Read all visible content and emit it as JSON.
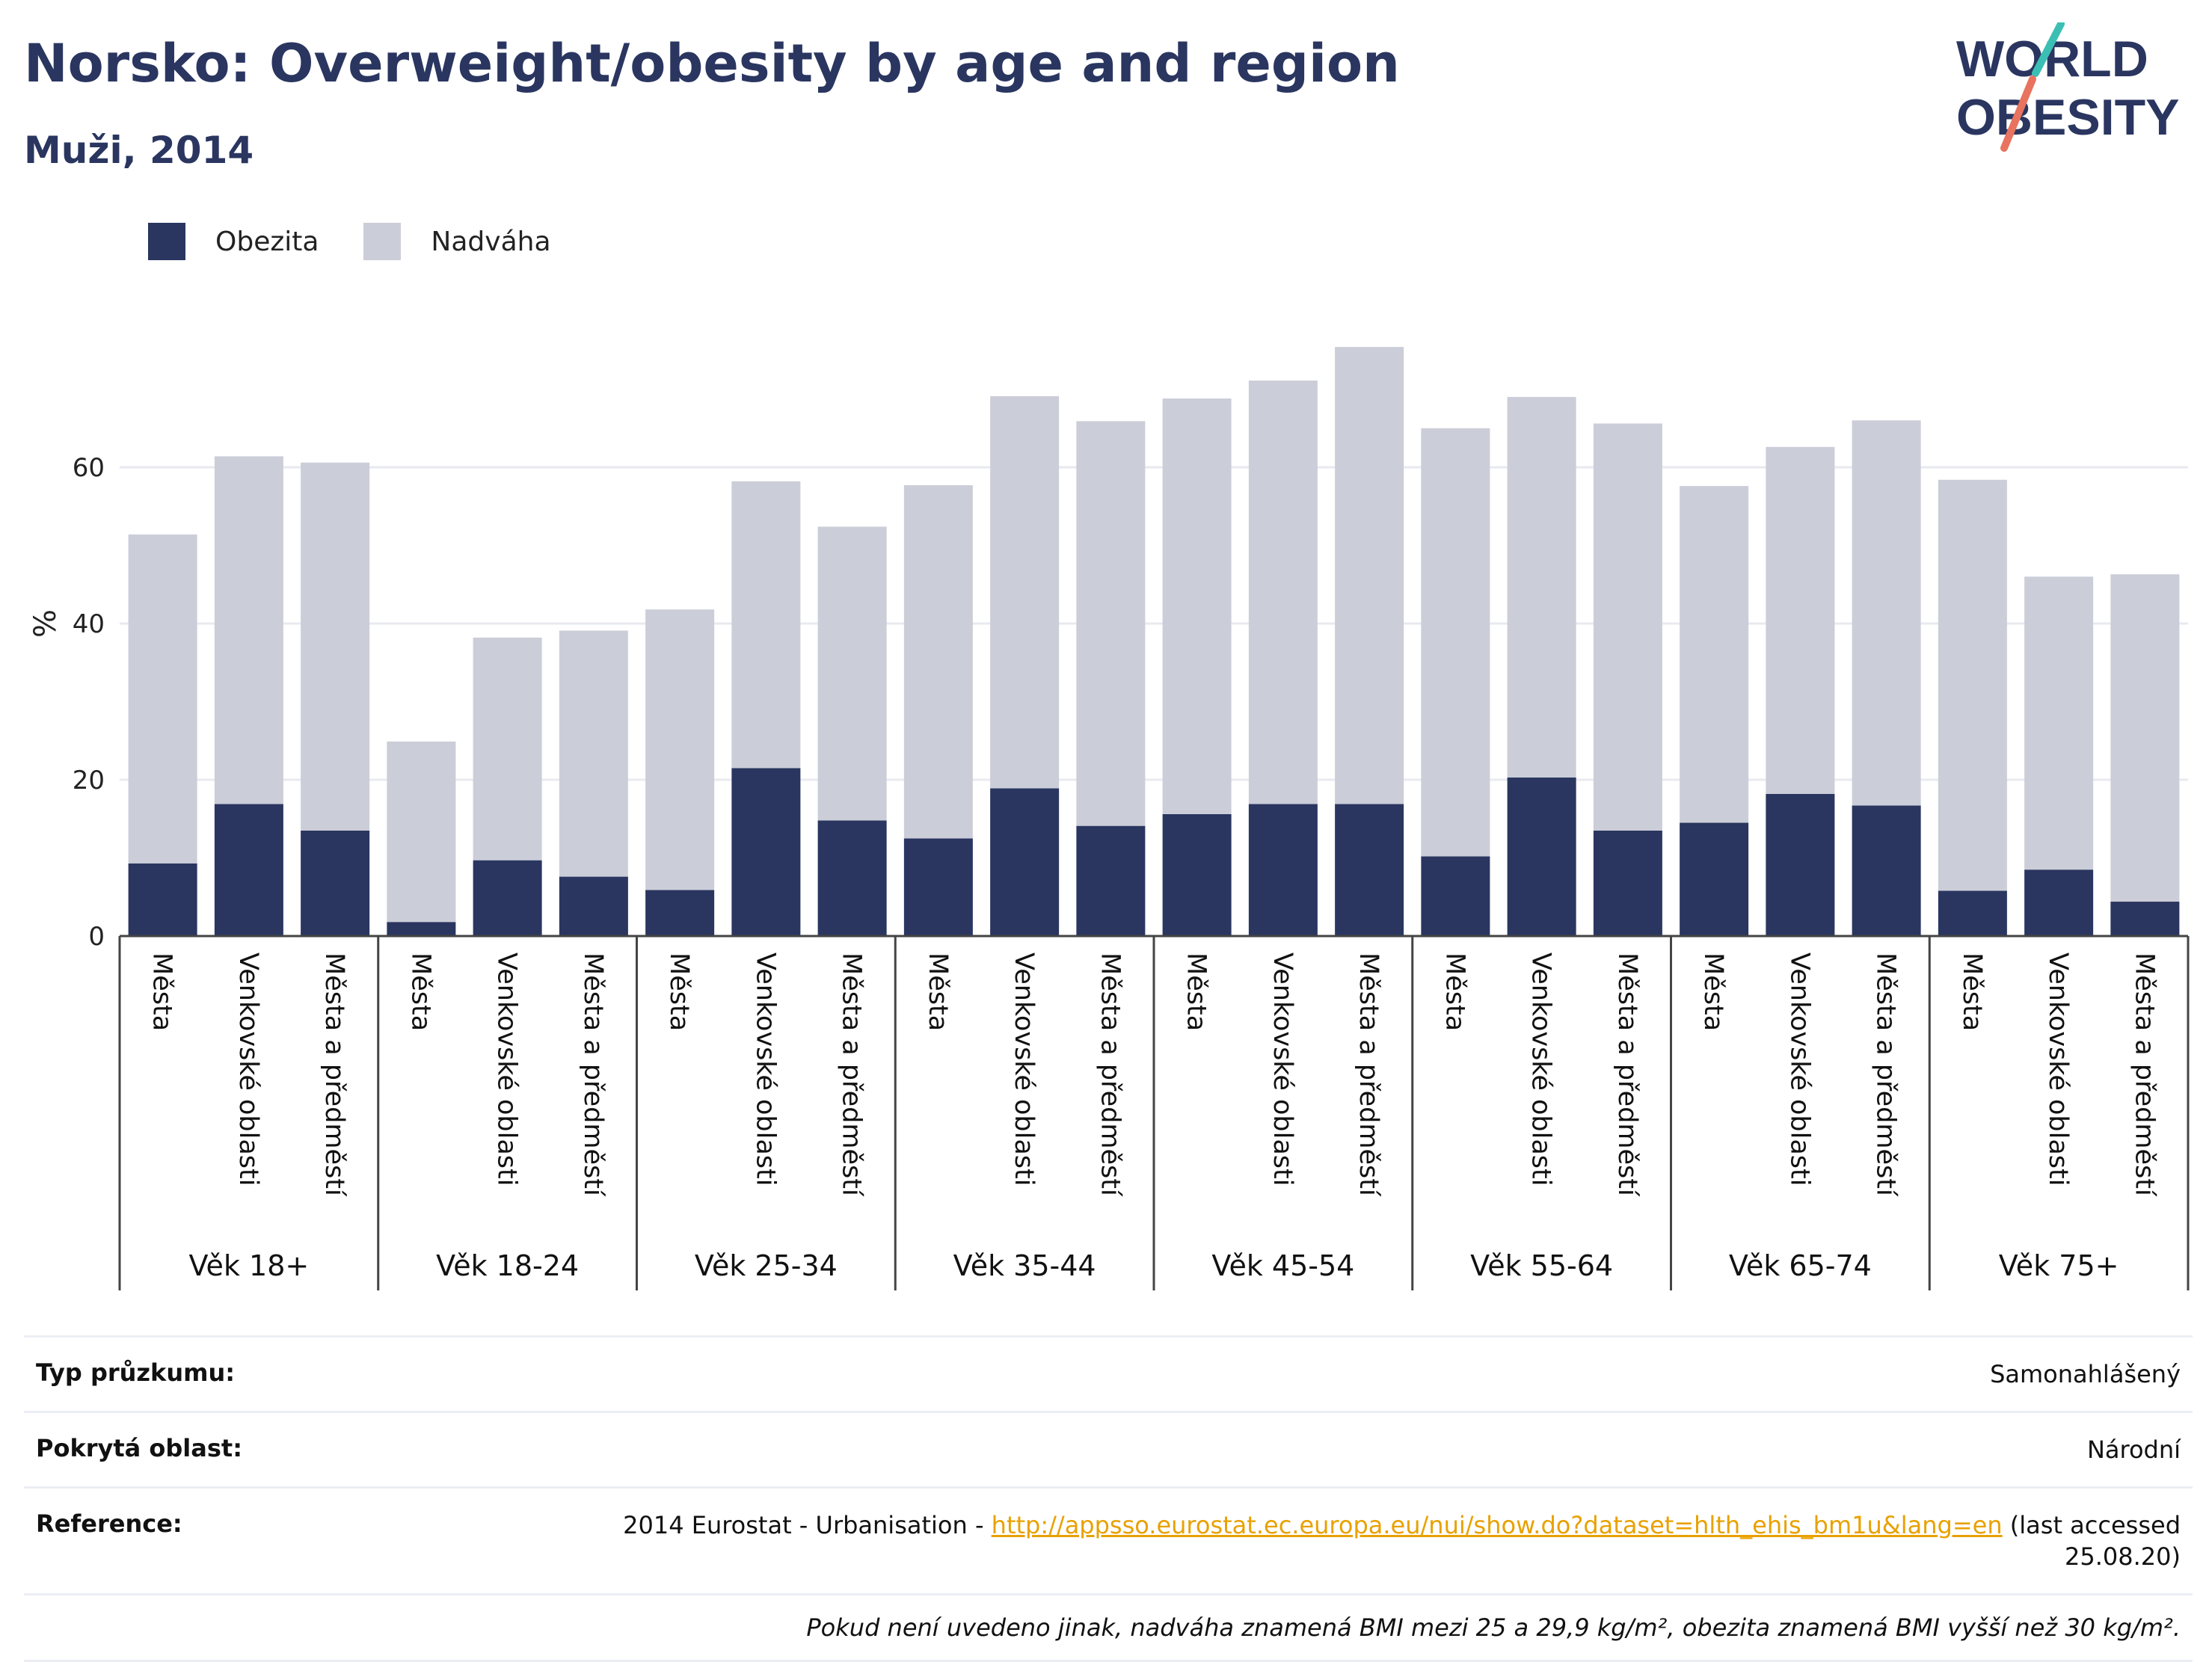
{
  "header": {
    "title": "Norsko: Overweight/obesity by age and region",
    "subtitle": "Muži, 2014"
  },
  "logo": {
    "line1": "WORLD",
    "line2": "OBESITY"
  },
  "colors": {
    "obesity": "#2a3660",
    "overweight": "#cbcdd8",
    "accent_teal": "#3bbfb4",
    "accent_coral": "#e8735e"
  },
  "legend": [
    {
      "label": "Obezita",
      "color": "#2a3660"
    },
    {
      "label": "Nadváha",
      "color": "#cbcdd8"
    }
  ],
  "chart_data": {
    "type": "bar",
    "stacked": true,
    "ylabel": "%",
    "ylim": [
      0,
      78
    ],
    "yticks": [
      0,
      20,
      40,
      60
    ],
    "grid": true,
    "legend_position": "top-left",
    "groups": [
      {
        "label": "Věk 18+",
        "categories": [
          "Města",
          "Venkovské oblasti",
          "Města a předměstí"
        ],
        "obezita": [
          9.3,
          16.9,
          13.5
        ],
        "nadvaha": [
          42.1,
          44.5,
          47.1
        ]
      },
      {
        "label": "Věk 18-24",
        "categories": [
          "Města",
          "Venkovské oblasti",
          "Města a předměstí"
        ],
        "obezita": [
          1.8,
          9.7,
          7.6
        ],
        "nadvaha": [
          23.1,
          28.5,
          31.5
        ]
      },
      {
        "label": "Věk 25-34",
        "categories": [
          "Města",
          "Venkovské oblasti",
          "Města a předměstí"
        ],
        "obezita": [
          5.9,
          21.5,
          14.8
        ],
        "nadvaha": [
          35.9,
          36.7,
          37.6
        ]
      },
      {
        "label": "Věk 35-44",
        "categories": [
          "Města",
          "Venkovské oblasti",
          "Města a předměstí"
        ],
        "obezita": [
          12.5,
          18.9,
          14.1
        ],
        "nadvaha": [
          45.2,
          50.2,
          51.8
        ]
      },
      {
        "label": "Věk 45-54",
        "categories": [
          "Města",
          "Venkovské oblasti",
          "Města a předměstí"
        ],
        "obezita": [
          15.6,
          16.9,
          16.9
        ],
        "nadvaha": [
          53.2,
          54.2,
          58.5
        ]
      },
      {
        "label": "Věk 55-64",
        "categories": [
          "Města",
          "Venkovské oblasti",
          "Města a předměstí"
        ],
        "obezita": [
          10.2,
          20.3,
          13.5
        ],
        "nadvaha": [
          54.8,
          48.7,
          52.1
        ]
      },
      {
        "label": "Věk 65-74",
        "categories": [
          "Města",
          "Venkovské oblasti",
          "Města a předměstí"
        ],
        "obezita": [
          14.5,
          18.2,
          16.7
        ],
        "nadvaha": [
          43.1,
          44.4,
          49.3
        ]
      },
      {
        "label": "Věk 75+",
        "categories": [
          "Města",
          "Venkovské oblasti",
          "Města a předměstí"
        ],
        "obezita": [
          5.8,
          8.5,
          4.4
        ],
        "nadvaha": [
          52.6,
          37.5,
          41.9
        ]
      }
    ]
  },
  "info": {
    "survey_type_label": "Typ průzkumu:",
    "survey_type_value": "Samonahlášený",
    "coverage_label": "Pokrytá oblast:",
    "coverage_value": "Národní",
    "reference_label": "Reference:",
    "reference_prefix": "2014 Eurostat - Urbanisation - ",
    "reference_link": "http://appsso.eurostat.ec.europa.eu/nui/show.do?dataset=hlth_ehis_bm1u&lang=en",
    "reference_suffix": " (last accessed 25.08.20)",
    "note": "Pokud není uvedeno jinak, nadváha znamená BMI mezi 25 a 29,9 kg/m², obezita znamená BMI vyšší než 30 kg/m²."
  }
}
